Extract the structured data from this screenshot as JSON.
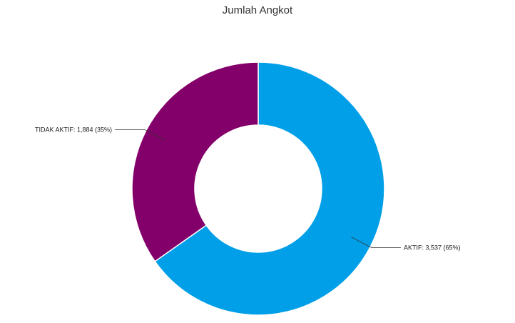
{
  "chart_data": {
    "type": "pie",
    "title": "Jumlah Angkot",
    "slices": [
      {
        "name": "AKTIF",
        "value": 3537,
        "percent": 65,
        "label": "AKTIF: 3,537 (65%)",
        "color": "#009fe8"
      },
      {
        "name": "TIDAK AKTIF",
        "value": 1884,
        "percent": 35,
        "label": "TIDAK AKTIF: 1,884 (35%)",
        "color": "#83006a"
      }
    ],
    "donut": true,
    "legend": "none"
  }
}
